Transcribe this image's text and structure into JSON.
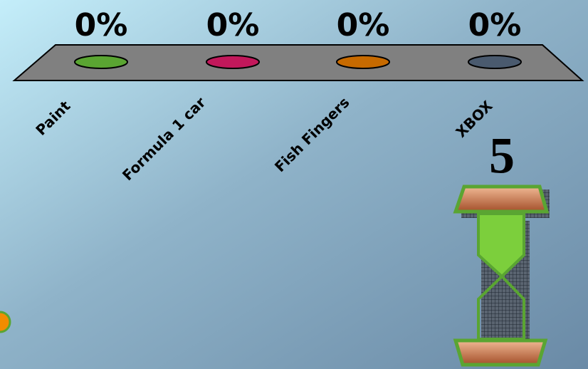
{
  "chart_data": {
    "type": "bar",
    "categories": [
      "Paint",
      "Formula 1 car",
      "Fish Fingers",
      "XBOX"
    ],
    "values": [
      0,
      0,
      0,
      0
    ],
    "value_labels": [
      "0%",
      "0%",
      "0%",
      "0%"
    ],
    "colors": [
      "#5aa532",
      "#c2185b",
      "#c76a00",
      "#4a5a6e"
    ]
  },
  "countdown": 5
}
